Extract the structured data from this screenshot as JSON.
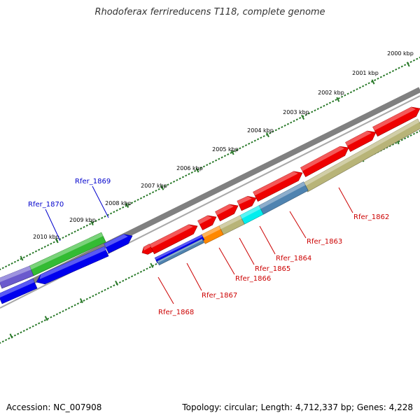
{
  "title": "Rhodoferax ferrireducens T118, complete genome",
  "accession_text": "Accession: NC_007908",
  "summary_text": "Topology: circular; Length: 4,712,337 bp; Genes: 4,228",
  "scale": {
    "unit": "kbp",
    "tick_labels": [
      "2000 kbp",
      "2001 kbp",
      "2002 kbp",
      "2003 kbp",
      "2004 kbp",
      "2005 kbp",
      "2006 kbp",
      "2007 kbp",
      "2008 kbp",
      "2009 kbp",
      "2010 kbp"
    ]
  },
  "colors": {
    "background": "#ffffff",
    "backbone": "#808080",
    "tick": "#2a7a2a",
    "red_label": "#cc0000",
    "blue_label": "#0000cc",
    "gene_red": "#ee0000",
    "gene_blue": "#0000ee",
    "gene_green": "#33bb33",
    "gene_orange": "#ff8800",
    "gene_cyan": "#00eeee",
    "gene_steel": "#4f83b0",
    "gene_khaki": "#b8b478",
    "gene_purple": "#6a5acd"
  },
  "gene_labels": {
    "red": [
      "Rfer_1862",
      "Rfer_1863",
      "Rfer_1864",
      "Rfer_1865",
      "Rfer_1866",
      "Rfer_1867",
      "Rfer_1868"
    ],
    "blue": [
      "Rfer_1869",
      "Rfer_1870"
    ]
  }
}
